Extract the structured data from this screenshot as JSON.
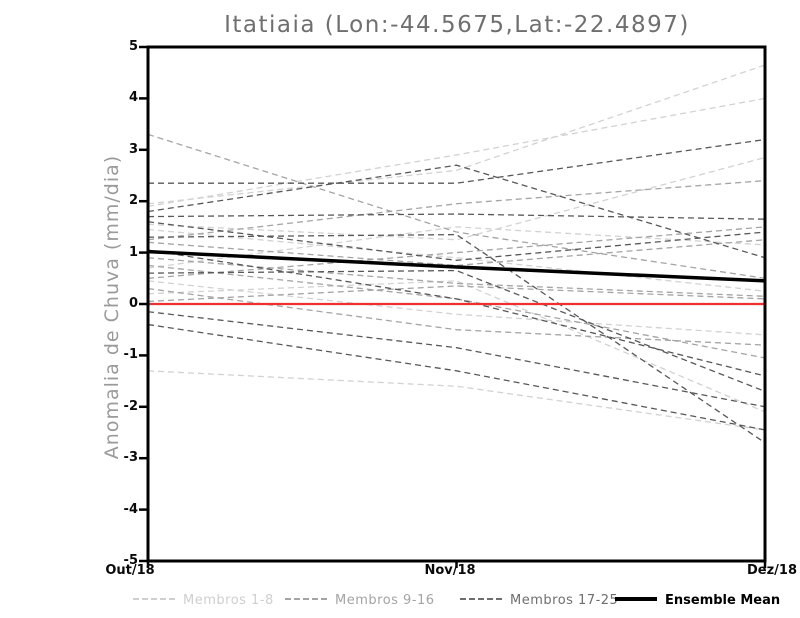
{
  "title": "Itatiaia (Lon:-44.5675,Lat:-22.4897)",
  "chart_data": {
    "type": "line",
    "title": "Itatiaia (Lon:-44.5675,Lat:-22.4897)",
    "xlabel": "",
    "ylabel": "Anomalia de Chuva (mm/dia)",
    "x_tick_labels": [
      "Out/18",
      "Nov/18",
      "Dez/18"
    ],
    "y_ticks": [
      5,
      4,
      3,
      2,
      1,
      0,
      -1,
      -2,
      -3,
      -4,
      -5
    ],
    "ylim": [
      -5,
      5
    ],
    "grid": false,
    "legend_position": "bottom",
    "zero_line": {
      "y": 0,
      "color": "#f03030"
    },
    "frame_color": "#000000",
    "groups": [
      {
        "label": "Membros 1-8",
        "color": "#d2d2d2",
        "style": "dashed",
        "members": [
          [
            1.95,
            2.6,
            4.65
          ],
          [
            1.9,
            2.9,
            4.0
          ],
          [
            1.55,
            1.25,
            2.85
          ],
          [
            1.45,
            0.9,
            0.25
          ],
          [
            0.7,
            1.5,
            1.15
          ],
          [
            0.45,
            -0.2,
            -0.6
          ],
          [
            0.2,
            0.45,
            -2.1
          ],
          [
            -1.3,
            -1.6,
            -2.45
          ]
        ]
      },
      {
        "label": "Membros 9-16",
        "color": "#a4a4a4",
        "style": "dashed",
        "members": [
          [
            3.3,
            1.4,
            0.5
          ],
          [
            1.25,
            1.95,
            2.4
          ],
          [
            1.2,
            0.75,
            1.25
          ],
          [
            0.9,
            0.4,
            0.15
          ],
          [
            0.75,
            0.1,
            -1.05
          ],
          [
            0.5,
            1.0,
            1.5
          ],
          [
            0.3,
            -0.5,
            -0.8
          ],
          [
            0.05,
            0.35,
            0.1
          ]
        ]
      },
      {
        "label": "Membros 17-25",
        "color": "#585858",
        "style": "dashed",
        "members": [
          [
            2.35,
            2.35,
            3.2
          ],
          [
            1.8,
            2.7,
            0.9
          ],
          [
            1.7,
            1.75,
            1.65
          ],
          [
            1.6,
            0.85,
            1.4
          ],
          [
            1.3,
            1.35,
            -2.7
          ],
          [
            1.05,
            0.1,
            -1.4
          ],
          [
            0.6,
            0.65,
            -1.7
          ],
          [
            -0.15,
            -0.85,
            -2.0
          ],
          [
            -0.4,
            -1.3,
            -2.45
          ]
        ]
      }
    ],
    "ensemble_mean": {
      "label": "Ensemble Mean",
      "color": "#000000",
      "style": "solid",
      "values": [
        1.02,
        0.72,
        0.45
      ]
    },
    "legend": [
      {
        "label": "Membros 1-8",
        "color": "#cfcfcf",
        "style": "dashed",
        "text_color": "#cfcfcf"
      },
      {
        "label": "Membros 9-16",
        "color": "#a4a4a4",
        "style": "dashed",
        "text_color": "#a4a4a4"
      },
      {
        "label": "Membros 17-25",
        "color": "#6e6e6e",
        "style": "dashed",
        "text_color": "#6e6e6e"
      },
      {
        "label": "Ensemble Mean",
        "color": "#000000",
        "style": "solid",
        "text_color": "#000000"
      }
    ]
  }
}
